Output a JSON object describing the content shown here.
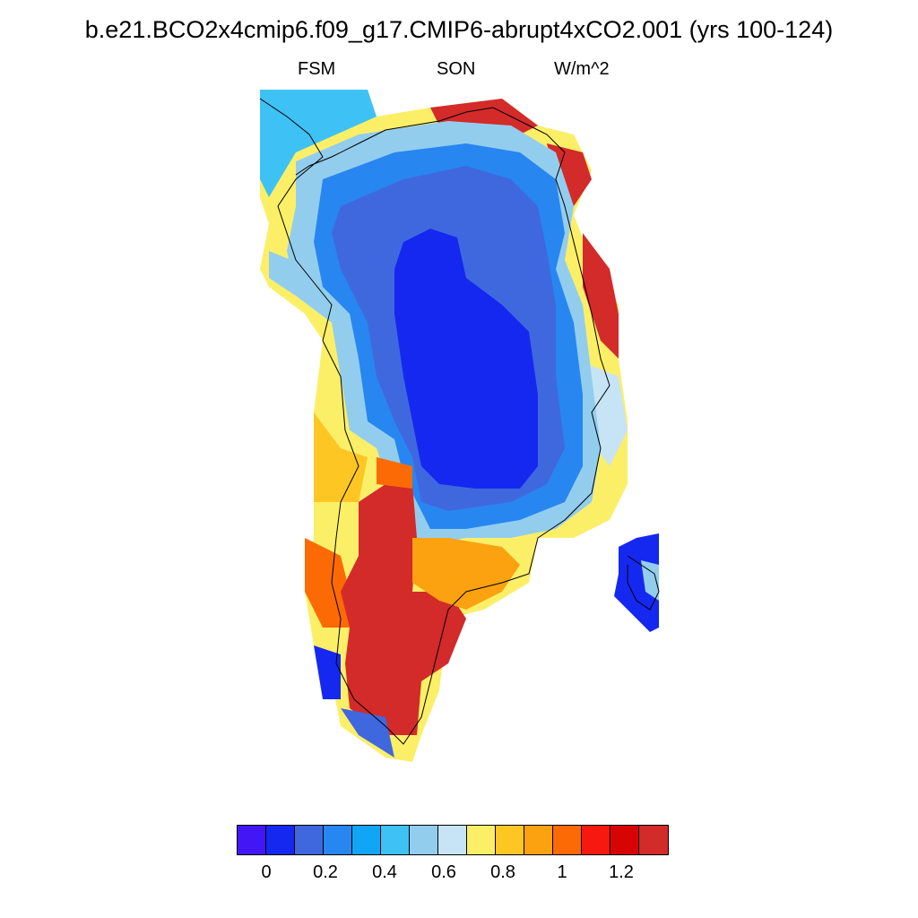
{
  "header": {
    "title": "b.e21.BCO2x4cmip6.f09_g17.CMIP6-abrupt4xCO2.001 (yrs 100-124)",
    "left": "FSM",
    "center": "SON",
    "right": "W/m^2"
  },
  "colorbar": {
    "colors": [
      "#4216f5",
      "#1528f0",
      "#3f68df",
      "#2886f0",
      "#10a6f5",
      "#3ec2f5",
      "#93cdee",
      "#c7e4f6",
      "#fcef68",
      "#fdc623",
      "#fca10f",
      "#fc6a05",
      "#f7180f",
      "#d80404",
      "#d32a2a"
    ],
    "labels": [
      "0",
      "0.2",
      "0.4",
      "0.6",
      "0.8",
      "1",
      "1.2"
    ]
  },
  "map": {
    "regions": [
      {
        "name": "Greenland interior",
        "color": "#1528f0"
      },
      {
        "name": "Greenland northeast coast",
        "color": "#d32a2a"
      },
      {
        "name": "Greenland southwest",
        "color": "#d32a2a"
      },
      {
        "name": "Iceland",
        "color": "#1528f0"
      }
    ]
  }
}
